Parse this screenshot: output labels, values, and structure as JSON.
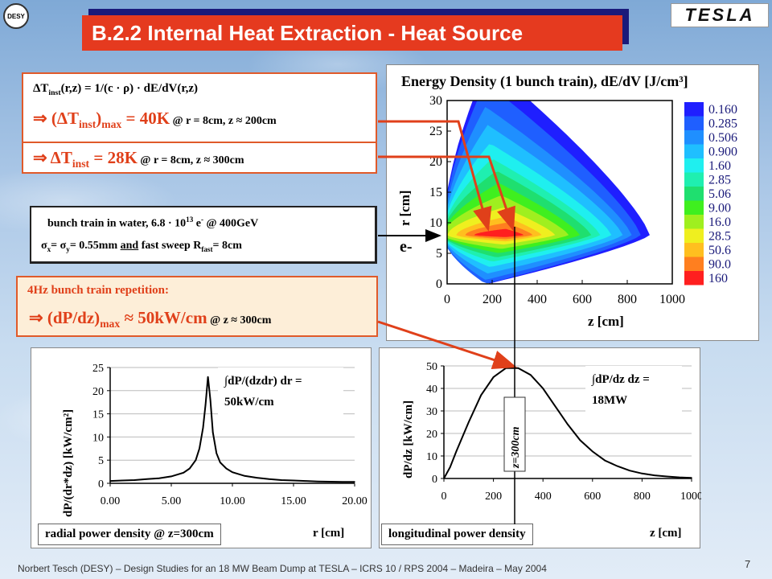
{
  "logos": {
    "desy": "DESY",
    "tesla": "TESLA"
  },
  "title": "B.2.2 Internal Heat Extraction - Heat Source",
  "box1": {
    "line1_pre": "ΔT",
    "line1_sub": "inst",
    "line1_post": "(r,z) = 1/(c · ρ) · dE/dV(r,z)",
    "line2_pre": "⇒ (ΔT",
    "line2_sub": "inst",
    "line2_mid": ")",
    "line2_sub2": "max",
    "line2_post": " = 40K",
    "line2_small": " @ r = 8cm, z ≈ 200cm",
    "line3_pre": "⇒ ΔT",
    "line3_sub": "inst",
    "line3_post": " = 28K",
    "line3_small": " @ r = 8cm, z ≈ 300cm"
  },
  "box2": {
    "line1_pre": "bunch train in water, 6.8 · 10",
    "line1_sup": "13",
    "line1_mid": " e",
    "line1_sup2": "-",
    "line1_post": " @ 400GeV",
    "line2_a": "σ",
    "line2_sub1": "x",
    "line2_b": "= σ",
    "line2_sub2": "y",
    "line2_c": "= 0.55mm ",
    "line2_und": "and",
    "line2_d": " fast sweep R",
    "line2_sub3": "fast",
    "line2_e": "= 8cm"
  },
  "box3": {
    "line1": "4Hz bunch train repetition:",
    "line2_pre": "⇒ (dP/dz)",
    "line2_sub": "max",
    "line2_post": " ≈ 50kW/cm",
    "line2_small": " @ z ≈ 300cm"
  },
  "beam_label": "e-",
  "chart_data": [
    {
      "type": "heatmap",
      "title": "Energy Density (1 bunch train), dE/dV [J/cm³]",
      "xlabel": "z [cm]",
      "ylabel": "r [cm]",
      "xlim": [
        0,
        1000
      ],
      "ylim": [
        0,
        30
      ],
      "xticks": [
        "0",
        "200",
        "400",
        "600",
        "800",
        "1000"
      ],
      "yticks": [
        "0",
        "5",
        "10",
        "15",
        "20",
        "25",
        "30"
      ],
      "legend_levels": [
        "0.160",
        "0.285",
        "0.506",
        "0.900",
        "1.60",
        "2.85",
        "5.06",
        "9.00",
        "16.0",
        "28.5",
        "50.6",
        "90.0",
        "160"
      ],
      "legend_colors": [
        "#1f1fff",
        "#1f5fff",
        "#1f8fff",
        "#1fbfff",
        "#1fefef",
        "#1fefb0",
        "#1fdf6f",
        "#3fef1f",
        "#9fef1f",
        "#efef1f",
        "#ffbf1f",
        "#ff7f1f",
        "#ff1f1f"
      ]
    },
    {
      "type": "line",
      "xlabel": "r [cm]",
      "ylabel": "dP/(dr*dz) [kW/cm²]",
      "xlim": [
        0,
        20
      ],
      "ylim": [
        0,
        25
      ],
      "xticks": [
        "0.00",
        "5.00",
        "10.00",
        "15.00",
        "20.00"
      ],
      "yticks": [
        "0",
        "5",
        "10",
        "15",
        "20",
        "25"
      ],
      "x": [
        0,
        1,
        2,
        3,
        4,
        5,
        6,
        6.5,
        7,
        7.3,
        7.6,
        7.8,
        8.0,
        8.2,
        8.4,
        8.7,
        9,
        9.5,
        10,
        11,
        12,
        13,
        14,
        15,
        16,
        17,
        18,
        19,
        20
      ],
      "y": [
        0.5,
        0.6,
        0.7,
        0.9,
        1.1,
        1.5,
        2.3,
        3.2,
        5.0,
        7.5,
        12,
        17,
        23,
        18,
        11,
        6.5,
        4.5,
        3.2,
        2.4,
        1.6,
        1.2,
        0.9,
        0.7,
        0.6,
        0.5,
        0.4,
        0.35,
        0.3,
        0.3
      ],
      "annotation_line1": "∫dP/(dzdr) dr =",
      "annotation_line2": "50kW/cm",
      "caption": "radial power density @ z=300cm"
    },
    {
      "type": "line",
      "xlabel": "z [cm]",
      "ylabel": "dP/dz [kW/cm]",
      "xlim": [
        0,
        1000
      ],
      "ylim": [
        0,
        50
      ],
      "xticks": [
        "0",
        "200",
        "400",
        "600",
        "800",
        "1000"
      ],
      "yticks": [
        "0",
        "10",
        "20",
        "30",
        "40",
        "50"
      ],
      "x": [
        0,
        25,
        50,
        100,
        150,
        200,
        250,
        300,
        350,
        400,
        450,
        500,
        550,
        600,
        650,
        700,
        750,
        800,
        850,
        900,
        950,
        1000
      ],
      "y": [
        0,
        5,
        12,
        25,
        37,
        45,
        49,
        49,
        46,
        40,
        32,
        24,
        17,
        12,
        8,
        5.5,
        3.5,
        2.2,
        1.4,
        0.9,
        0.5,
        0.3
      ],
      "annotation_line1": "∫dP/dz dz =",
      "annotation_line2": "18MW",
      "marker_label": "z=300cm",
      "marker_z": 300,
      "caption": "longitudinal power density"
    }
  ],
  "footer": "Norbert Tesch (DESY) – Design Studies for an 18 MW Beam Dump at TESLA – ICRS 10 / RPS 2004 – Madeira – May 2004",
  "page_number": "7"
}
